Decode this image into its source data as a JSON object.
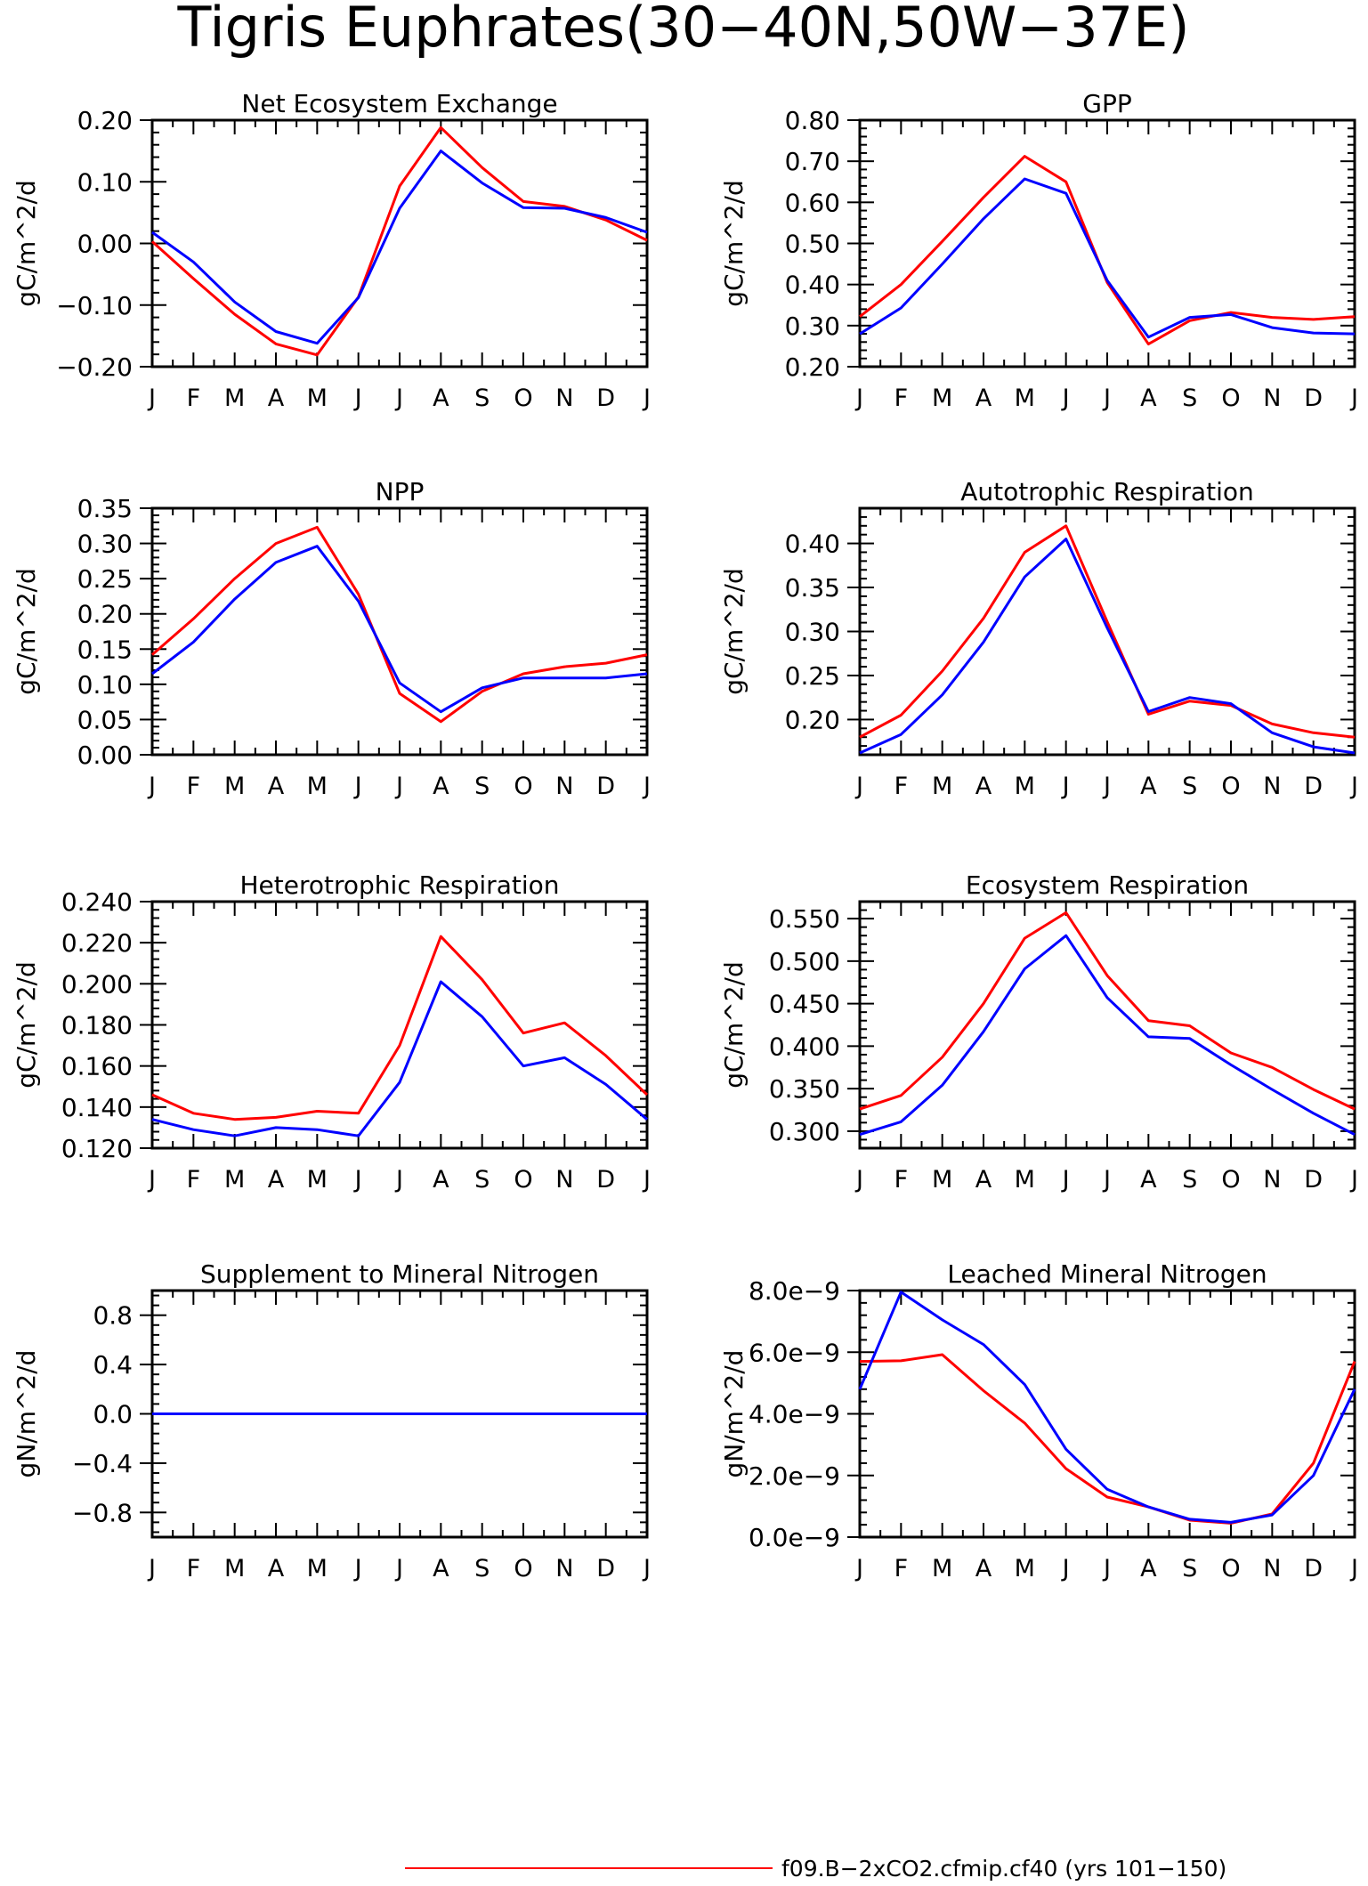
{
  "page": {
    "title": "Tigris Euphrates(30−40N,50W−37E)",
    "legend": [
      {
        "label": "f09.B−2xCO2.cfmip.cf40 (yrs 101−150)",
        "color": "#ff0000"
      }
    ]
  },
  "months": [
    "J",
    "F",
    "M",
    "A",
    "M",
    "J",
    "J",
    "A",
    "S",
    "O",
    "N",
    "D",
    "J"
  ],
  "colors": {
    "red": "#ff0000",
    "blue": "#0000ff"
  },
  "chart_data": [
    {
      "type": "line",
      "title": "Net Ecosystem Exchange",
      "ylabel": "gC/m^2/d",
      "ylim": [
        -0.2,
        0.2
      ],
      "yticks": [
        -0.2,
        -0.1,
        0.0,
        0.1,
        0.2
      ],
      "ytick_labels": [
        "−0.20",
        "−0.10",
        "0.00",
        "0.10",
        "0.20"
      ],
      "series": [
        {
          "color": "#ff0000",
          "values": [
            0.003,
            -0.057,
            -0.115,
            -0.163,
            -0.181,
            -0.087,
            0.093,
            0.188,
            0.123,
            0.068,
            0.06,
            0.038,
            0.005
          ]
        },
        {
          "color": "#0000ff",
          "values": [
            0.018,
            -0.03,
            -0.095,
            -0.143,
            -0.162,
            -0.088,
            0.057,
            0.15,
            0.098,
            0.058,
            0.057,
            0.042,
            0.018
          ]
        }
      ]
    },
    {
      "type": "line",
      "title": "GPP",
      "ylabel": "gC/m^2/d",
      "ylim": [
        0.2,
        0.8
      ],
      "yticks": [
        0.2,
        0.3,
        0.4,
        0.5,
        0.6,
        0.7,
        0.8
      ],
      "ytick_labels": [
        "0.20",
        "0.30",
        "0.40",
        "0.50",
        "0.60",
        "0.70",
        "0.80"
      ],
      "series": [
        {
          "color": "#ff0000",
          "values": [
            0.322,
            0.4,
            0.505,
            0.612,
            0.712,
            0.65,
            0.405,
            0.255,
            0.312,
            0.332,
            0.32,
            0.315,
            0.322
          ]
        },
        {
          "color": "#0000ff",
          "values": [
            0.28,
            0.343,
            0.45,
            0.56,
            0.657,
            0.622,
            0.41,
            0.272,
            0.32,
            0.327,
            0.295,
            0.282,
            0.28
          ]
        }
      ]
    },
    {
      "type": "line",
      "title": "NPP",
      "ylabel": "gC/m^2/d",
      "ylim": [
        0.0,
        0.35
      ],
      "yticks": [
        0.0,
        0.05,
        0.1,
        0.15,
        0.2,
        0.25,
        0.3,
        0.35
      ],
      "ytick_labels": [
        "0.00",
        "0.05",
        "0.10",
        "0.15",
        "0.20",
        "0.25",
        "0.30",
        "0.35"
      ],
      "series": [
        {
          "color": "#ff0000",
          "values": [
            0.142,
            0.193,
            0.25,
            0.3,
            0.323,
            0.228,
            0.087,
            0.047,
            0.09,
            0.115,
            0.125,
            0.13,
            0.142
          ]
        },
        {
          "color": "#0000ff",
          "values": [
            0.115,
            0.16,
            0.221,
            0.273,
            0.296,
            0.218,
            0.102,
            0.061,
            0.095,
            0.109,
            0.109,
            0.109,
            0.115
          ]
        }
      ]
    },
    {
      "type": "line",
      "title": "Autotrophic Respiration",
      "ylabel": "gC/m^2/d",
      "ylim": [
        0.16,
        0.44
      ],
      "yticks": [
        0.2,
        0.25,
        0.3,
        0.35,
        0.4
      ],
      "ytick_labels": [
        "0.20",
        "0.25",
        "0.30",
        "0.35",
        "0.40"
      ],
      "series": [
        {
          "color": "#ff0000",
          "values": [
            0.18,
            0.205,
            0.255,
            0.315,
            0.39,
            0.42,
            0.311,
            0.206,
            0.221,
            0.216,
            0.195,
            0.185,
            0.18
          ]
        },
        {
          "color": "#0000ff",
          "values": [
            0.162,
            0.183,
            0.228,
            0.288,
            0.362,
            0.405,
            0.304,
            0.209,
            0.225,
            0.218,
            0.185,
            0.169,
            0.162
          ]
        }
      ]
    },
    {
      "type": "line",
      "title": "Heterotrophic Respiration",
      "ylabel": "gC/m^2/d",
      "ylim": [
        0.12,
        0.24
      ],
      "yticks": [
        0.12,
        0.14,
        0.16,
        0.18,
        0.2,
        0.22,
        0.24
      ],
      "ytick_labels": [
        "0.120",
        "0.140",
        "0.160",
        "0.180",
        "0.200",
        "0.220",
        "0.240"
      ],
      "series": [
        {
          "color": "#ff0000",
          "values": [
            0.146,
            0.137,
            0.134,
            0.135,
            0.138,
            0.137,
            0.17,
            0.223,
            0.202,
            0.176,
            0.181,
            0.165,
            0.146
          ]
        },
        {
          "color": "#0000ff",
          "values": [
            0.134,
            0.129,
            0.126,
            0.13,
            0.129,
            0.126,
            0.152,
            0.201,
            0.184,
            0.16,
            0.164,
            0.151,
            0.134
          ]
        }
      ]
    },
    {
      "type": "line",
      "title": "Ecosystem Respiration",
      "ylabel": "gC/m^2/d",
      "ylim": [
        0.28,
        0.57
      ],
      "yticks": [
        0.3,
        0.35,
        0.4,
        0.45,
        0.5,
        0.55
      ],
      "ytick_labels": [
        "0.300",
        "0.350",
        "0.400",
        "0.450",
        "0.500",
        "0.550"
      ],
      "series": [
        {
          "color": "#ff0000",
          "values": [
            0.326,
            0.342,
            0.387,
            0.45,
            0.527,
            0.557,
            0.483,
            0.43,
            0.424,
            0.392,
            0.375,
            0.349,
            0.326
          ]
        },
        {
          "color": "#0000ff",
          "values": [
            0.296,
            0.311,
            0.354,
            0.417,
            0.491,
            0.53,
            0.457,
            0.411,
            0.409,
            0.378,
            0.349,
            0.321,
            0.296
          ]
        }
      ]
    },
    {
      "type": "line",
      "title": "Supplement to Mineral Nitrogen",
      "ylabel": "gN/m^2/d",
      "ylim": [
        -1.0,
        1.0
      ],
      "yticks": [
        -0.8,
        -0.4,
        0.0,
        0.4,
        0.8
      ],
      "ytick_labels": [
        "−0.8",
        "−0.4",
        "0.0",
        "0.4",
        "0.8"
      ],
      "series": [
        {
          "color": "#ff0000",
          "values": [
            0,
            0,
            0,
            0,
            0,
            0,
            0,
            0,
            0,
            0,
            0,
            0,
            0
          ]
        },
        {
          "color": "#0000ff",
          "values": [
            0,
            0,
            0,
            0,
            0,
            0,
            0,
            0,
            0,
            0,
            0,
            0,
            0
          ]
        }
      ]
    },
    {
      "type": "line",
      "title": "Leached Mineral Nitrogen",
      "ylabel": "gN/m^2/d",
      "ylim": [
        0.0,
        8e-09
      ],
      "yticks": [
        0.0,
        2e-09,
        4e-09,
        6e-09,
        8e-09
      ],
      "ytick_labels": [
        "0.0e−9",
        "2.0e−9",
        "4.0e−9",
        "6.0e−9",
        "8.0e−9"
      ],
      "series": [
        {
          "color": "#ff0000",
          "values": [
            5.7e-09,
            5.72e-09,
            5.92e-09,
            4.75e-09,
            3.7e-09,
            2.22e-09,
            1.3e-09,
            9.8e-10,
            5.5e-10,
            4.5e-10,
            7.5e-10,
            2.4e-09,
            5.7e-09
          ]
        },
        {
          "color": "#0000ff",
          "values": [
            4.8e-09,
            7.95e-09,
            7.05e-09,
            6.25e-09,
            4.95e-09,
            2.85e-09,
            1.55e-09,
            9.8e-10,
            5.8e-10,
            4.8e-10,
            7.2e-10,
            2e-09,
            4.8e-09
          ]
        }
      ]
    }
  ]
}
